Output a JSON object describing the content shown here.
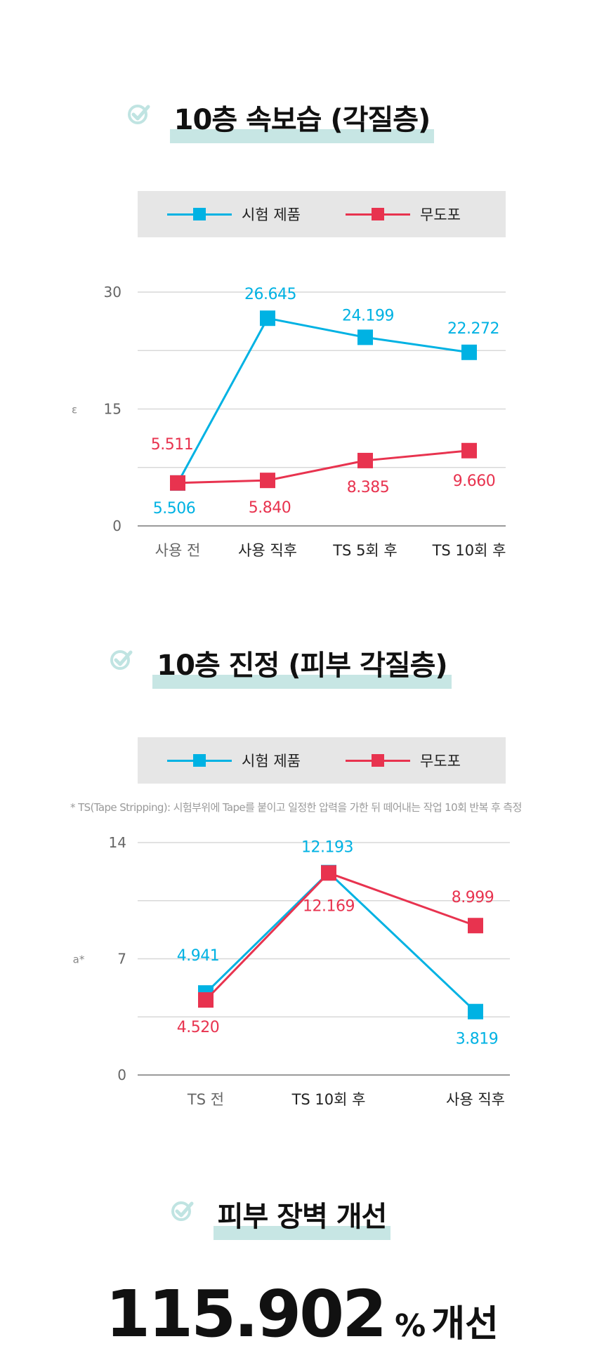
{
  "colors": {
    "product": "#00b2e3",
    "control": "#e8334f",
    "highlight": "#c7e6e4",
    "check": "#c0e4e2"
  },
  "sections": [
    {
      "title": "10층 속보습 (각질층)"
    },
    {
      "title": "10층 진정 (피부 각질층)"
    },
    {
      "title": "피부 장벽 개선"
    }
  ],
  "legend": {
    "product_label": "시험 제품",
    "control_label": "무도포"
  },
  "note": "* TS(Tape Stripping): 시험부위에 Tape를 붙이고 일정한 압력을 가한 뒤 떼어내는 작업 10회 반복 후 측정",
  "result": {
    "value": "115.902",
    "unit": "%",
    "suffix": "개선"
  },
  "chart_data": [
    {
      "type": "line",
      "title": "10층 속보습 (각질층)",
      "ylabel": "ε",
      "ylim": [
        0,
        30
      ],
      "yticks": [
        0,
        15,
        30
      ],
      "categories": [
        "사용 전",
        "사용 직후",
        "TS 5회 후",
        "TS 10회 후"
      ],
      "series": [
        {
          "name": "시험 제품",
          "values": [
            5.506,
            26.645,
            24.199,
            22.272
          ],
          "labels": [
            "5.506",
            "26.645",
            "24.199",
            "22.272"
          ]
        },
        {
          "name": "무도포",
          "values": [
            5.511,
            5.84,
            8.385,
            9.66
          ],
          "labels": [
            "5.511",
            "5.840",
            "8.385",
            "9.660"
          ]
        }
      ]
    },
    {
      "type": "line",
      "title": "10층 진정 (피부 각질층)",
      "ylabel": "a*",
      "ylim": [
        0,
        14
      ],
      "yticks": [
        0,
        7,
        14
      ],
      "categories": [
        "TS 전",
        "TS 10회 후",
        "사용 직후"
      ],
      "series": [
        {
          "name": "시험 제품",
          "values": [
            4.941,
            12.193,
            3.819
          ],
          "labels": [
            "4.941",
            "12.193",
            "3.819"
          ]
        },
        {
          "name": "무도포",
          "values": [
            4.52,
            12.169,
            8.999
          ],
          "labels": [
            "4.520",
            "12.169",
            "8.999"
          ]
        }
      ]
    }
  ]
}
